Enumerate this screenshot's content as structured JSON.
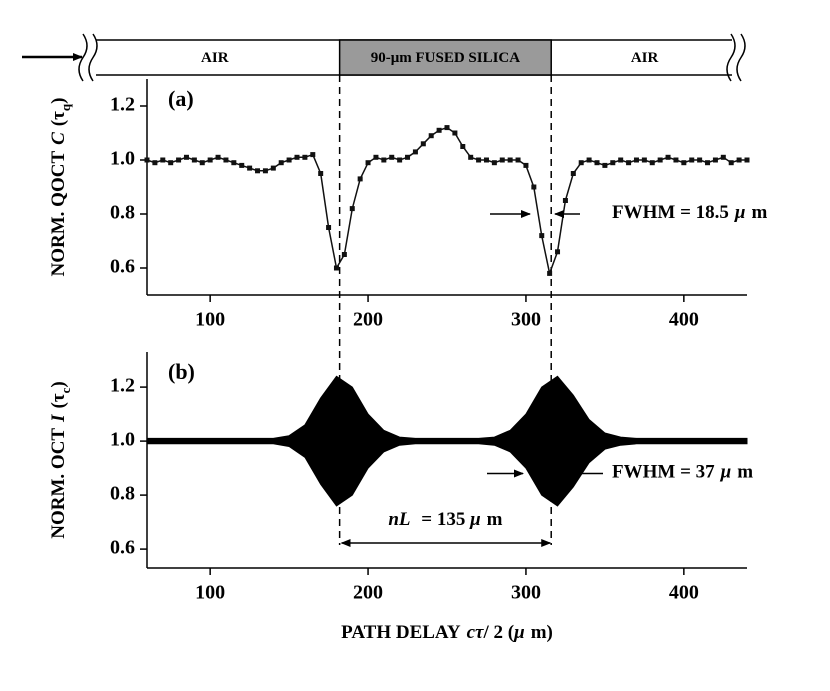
{
  "top_bar": {
    "segments": [
      "AIR",
      "90-μm FUSED SILICA",
      "AIR"
    ]
  },
  "interfaces_x": [
    182,
    316
  ],
  "chart_data": [
    {
      "type": "line",
      "label": "(a)",
      "ylabel_parts": [
        "NORM. QOCT",
        "C",
        "(τ",
        "q",
        ")"
      ],
      "annotation_parts": [
        "FWHM = 18.5",
        "μ",
        "m"
      ],
      "xlim": [
        60,
        440
      ],
      "xticks": [
        100,
        200,
        300,
        400
      ],
      "ylim": [
        0.5,
        1.3
      ],
      "yticks": [
        0.6,
        0.8,
        {
          "value": 1,
          "label": "1.0"
        },
        1.2
      ],
      "color": "#111111",
      "x": [
        60,
        65,
        70,
        75,
        80,
        85,
        90,
        95,
        100,
        105,
        110,
        115,
        120,
        125,
        130,
        135,
        140,
        145,
        150,
        155,
        160,
        165,
        170,
        175,
        180,
        185,
        190,
        195,
        200,
        205,
        210,
        215,
        220,
        225,
        230,
        235,
        240,
        245,
        250,
        255,
        260,
        265,
        270,
        275,
        280,
        285,
        290,
        295,
        300,
        305,
        310,
        315,
        320,
        325,
        330,
        335,
        340,
        345,
        350,
        355,
        360,
        365,
        370,
        375,
        380,
        385,
        390,
        395,
        400,
        405,
        410,
        415,
        420,
        425,
        430,
        435,
        440
      ],
      "values": [
        1.0,
        0.99,
        1.0,
        0.99,
        1.0,
        1.01,
        1.0,
        0.99,
        1.0,
        1.01,
        1.0,
        0.99,
        0.98,
        0.97,
        0.96,
        0.96,
        0.97,
        0.99,
        1.0,
        1.01,
        1.01,
        1.02,
        0.95,
        0.75,
        0.6,
        0.65,
        0.82,
        0.93,
        0.99,
        1.01,
        1.0,
        1.01,
        1.0,
        1.01,
        1.03,
        1.06,
        1.09,
        1.11,
        1.12,
        1.1,
        1.05,
        1.01,
        1.0,
        1.0,
        0.99,
        1.0,
        1.0,
        1.0,
        0.98,
        0.9,
        0.72,
        0.58,
        0.66,
        0.85,
        0.95,
        0.99,
        1.0,
        0.99,
        0.98,
        0.99,
        1.0,
        0.99,
        1.0,
        1.0,
        0.99,
        1.0,
        1.01,
        1.0,
        0.99,
        1.0,
        1.0,
        0.99,
        1.0,
        1.01,
        0.99,
        1.0,
        1.0
      ]
    },
    {
      "type": "envelope",
      "label": "(b)",
      "ylabel_parts": [
        "NORM. OCT",
        "I",
        "(τ",
        "c",
        ")"
      ],
      "annotation_parts": [
        "FWHM = 37",
        "μ",
        "m"
      ],
      "span_parts": [
        "nL",
        " = 135 ",
        "μ",
        "m"
      ],
      "xlabel_parts": [
        "PATH DELAY",
        "cτ",
        "/ 2 (",
        "μ",
        "m)"
      ],
      "xlim": [
        60,
        440
      ],
      "xticks": [
        100,
        200,
        300,
        400
      ],
      "ylim": [
        0.53,
        1.33
      ],
      "yticks": [
        0.6,
        0.8,
        {
          "value": 1,
          "label": "1.0"
        },
        1.2
      ],
      "color": "#000000",
      "x": [
        60,
        70,
        80,
        90,
        100,
        110,
        120,
        130,
        140,
        150,
        160,
        170,
        180,
        190,
        200,
        210,
        220,
        230,
        240,
        250,
        260,
        270,
        280,
        290,
        300,
        310,
        320,
        330,
        340,
        350,
        360,
        370,
        380,
        390,
        400,
        410,
        420,
        430,
        440
      ],
      "upper": [
        1.01,
        1.01,
        1.01,
        1.01,
        1.01,
        1.01,
        1.01,
        1.01,
        1.01,
        1.02,
        1.06,
        1.16,
        1.24,
        1.2,
        1.1,
        1.04,
        1.015,
        1.01,
        1.01,
        1.01,
        1.01,
        1.01,
        1.015,
        1.04,
        1.1,
        1.2,
        1.24,
        1.17,
        1.08,
        1.03,
        1.015,
        1.01,
        1.01,
        1.01,
        1.01,
        1.01,
        1.01,
        1.01,
        1.01
      ],
      "lower": [
        0.99,
        0.99,
        0.99,
        0.99,
        0.99,
        0.99,
        0.99,
        0.99,
        0.99,
        0.98,
        0.94,
        0.84,
        0.76,
        0.8,
        0.9,
        0.96,
        0.985,
        0.99,
        0.99,
        0.99,
        0.99,
        0.99,
        0.985,
        0.96,
        0.9,
        0.8,
        0.76,
        0.83,
        0.92,
        0.97,
        0.985,
        0.99,
        0.99,
        0.99,
        0.99,
        0.99,
        0.99,
        0.99,
        0.99
      ]
    }
  ]
}
